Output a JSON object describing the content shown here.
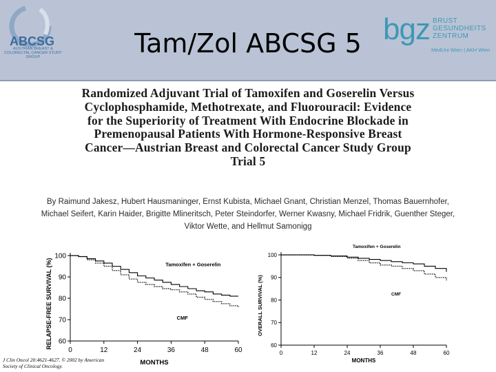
{
  "header": {
    "title": "Tam/Zol ABCSG 5",
    "left_logo": {
      "text": "ABCSG",
      "subtitle": "AUSTRIAN BREAST & COLORECTAL CANCER STUDY GROUP",
      "icon": "abcsg-ribbon-logo",
      "color": "#3c6b9c"
    },
    "right_logo": {
      "mark": "bgz",
      "words": [
        "BRUST",
        "GESUNDHEITS",
        "ZENTRUM"
      ],
      "affiliation": "MedUni Wien | AKH Wien",
      "color": "#3f98b5"
    },
    "background": "#b9c3d5"
  },
  "paper": {
    "title_lines": [
      "Randomized Adjuvant Trial of Tamoxifen and Goserelin Versus",
      "Cyclophosphamide, Methotrexate, and Fluorouracil: Evidence",
      "for the Superiority of Treatment With Endocrine Blockade in",
      "Premenopausal Patients With Hormone-Responsive Breast",
      "Cancer—Austrian Breast and Colorectal Cancer Study Group",
      "Trial 5"
    ],
    "author_lines": [
      "By Raimund Jakesz, Hubert Hausmaninger, Ernst Kubista, Michael Gnant, Christian Menzel, Thomas Bauernhofer,",
      "Michael Seifert, Karin Haider, Brigitte Mlineritsch, Peter Steindorfer, Werner Kwasny, Michael Fridrik, Guenther Steger,",
      "Viktor Wette, and Hellmut Samonigg"
    ],
    "citation_lines": [
      "J Clin Oncol 20:4621-4627. © 2002 by American",
      "Society of Clinical Oncology."
    ]
  },
  "chart_data": [
    {
      "type": "line",
      "ylabel": "RELAPSE-FREE SURVIVAL (%)",
      "xlabel": "MONTHS",
      "xlim": [
        0,
        60
      ],
      "ylim": [
        60,
        100
      ],
      "xticks": [
        "0",
        "12",
        "24",
        "36",
        "48",
        "60"
      ],
      "yticks": [
        "100",
        "90",
        "80",
        "70",
        "60"
      ],
      "grid": false,
      "series": [
        {
          "name": "Tamoxifen + Goserelin",
          "x": [
            0,
            3,
            6,
            9,
            12,
            15,
            18,
            21,
            24,
            27,
            30,
            33,
            36,
            39,
            42,
            45,
            48,
            51,
            54,
            57,
            60
          ],
          "values": [
            100,
            99.5,
            98.5,
            97.5,
            96.5,
            95,
            93.5,
            92,
            90.5,
            89.5,
            88.5,
            87.5,
            86.5,
            85.5,
            84.5,
            83.5,
            83,
            82,
            81.5,
            81,
            81
          ],
          "label_pos": {
            "x": 34,
            "y": 95
          }
        },
        {
          "name": "CMF",
          "x": [
            0,
            3,
            6,
            9,
            12,
            15,
            18,
            21,
            24,
            27,
            30,
            33,
            36,
            39,
            42,
            45,
            48,
            51,
            54,
            57,
            60
          ],
          "values": [
            100,
            99.5,
            98,
            96.5,
            95,
            93,
            91,
            89,
            87.5,
            86.5,
            85.5,
            84.5,
            84,
            83,
            82,
            80.5,
            79.5,
            78.5,
            77.5,
            76.5,
            76
          ],
          "label_pos": {
            "x": 38,
            "y": 70
          }
        }
      ]
    },
    {
      "type": "line",
      "ylabel": "OVERALL SURVIVAL (%)",
      "xlabel": "MONTHS",
      "xlim": [
        0,
        60
      ],
      "ylim": [
        60,
        100
      ],
      "xticks": [
        "0",
        "12",
        "24",
        "36",
        "48",
        "60"
      ],
      "yticks": [
        "100",
        "90",
        "80",
        "70",
        "60"
      ],
      "grid": false,
      "series": [
        {
          "name": "Tamoxifen + Goserelin",
          "x": [
            0,
            6,
            12,
            18,
            24,
            28,
            32,
            36,
            40,
            44,
            48,
            52,
            56,
            60
          ],
          "values": [
            100,
            100,
            99.8,
            99.5,
            99,
            98.5,
            98,
            97.5,
            97,
            96.5,
            96,
            95,
            94,
            92.5
          ],
          "label_pos": {
            "x": 26,
            "y": 103
          }
        },
        {
          "name": "CMF",
          "x": [
            0,
            6,
            12,
            18,
            24,
            28,
            32,
            36,
            40,
            44,
            48,
            52,
            56,
            60
          ],
          "values": [
            100,
            100,
            99.8,
            99.3,
            98.5,
            97.5,
            96.5,
            95.5,
            95,
            94,
            93,
            91.5,
            90,
            88.5
          ],
          "label_pos": {
            "x": 40,
            "y": 82
          }
        }
      ]
    }
  ]
}
